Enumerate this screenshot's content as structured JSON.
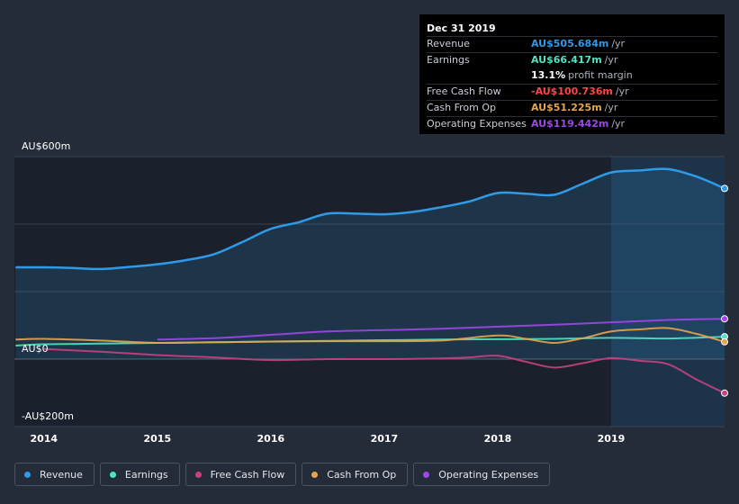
{
  "colors": {
    "revenue": "#2f9ae8",
    "earnings": "#4fe3c1",
    "free_cash_flow": "#c8417e",
    "cash_from_op": "#e8a44a",
    "operating_expenses": "#9d47e8"
  },
  "tooltip": {
    "date": "Dec 31 2019",
    "rows": [
      {
        "label": "Revenue",
        "value": "AU$505.684m",
        "unit": "/yr",
        "color": "#2f9ae8"
      },
      {
        "label": "Earnings",
        "value": "AU$66.417m",
        "unit": "/yr",
        "color": "#4fe3c1"
      },
      {
        "label": "",
        "value": "13.1%",
        "unit": "profit margin",
        "color": "#ffffff"
      },
      {
        "label": "Free Cash Flow",
        "value": "-AU$100.736m",
        "unit": "/yr",
        "color": "#ff4545"
      },
      {
        "label": "Cash From Op",
        "value": "AU$51.225m",
        "unit": "/yr",
        "color": "#e8a44a"
      },
      {
        "label": "Operating Expenses",
        "value": "AU$119.442m",
        "unit": "/yr",
        "color": "#9d47e8"
      }
    ]
  },
  "legend": [
    {
      "label": "Revenue",
      "color": "#2f9ae8"
    },
    {
      "label": "Earnings",
      "color": "#4fe3c1"
    },
    {
      "label": "Free Cash Flow",
      "color": "#c8417e"
    },
    {
      "label": "Cash From Op",
      "color": "#e8a44a"
    },
    {
      "label": "Operating Expenses",
      "color": "#9d47e8"
    }
  ],
  "chart_data": {
    "type": "area",
    "title": "",
    "xlabel": "",
    "ylabel": "",
    "ylim": [
      -200,
      600
    ],
    "xlim": [
      2013.74,
      2020.0
    ],
    "y_tick_labels": [
      {
        "value": 600,
        "label": "AU$600m"
      },
      {
        "value": 0,
        "label": "AU$0"
      },
      {
        "value": -200,
        "label": "-AU$200m"
      }
    ],
    "y_gridlines": [
      600,
      400,
      200,
      0,
      -200
    ],
    "x_ticks": [
      2014,
      2015,
      2016,
      2017,
      2018,
      2019
    ],
    "x_tick_labels": [
      "2014",
      "2015",
      "2016",
      "2017",
      "2018",
      "2019"
    ],
    "forecast_start": 2019.0,
    "series": [
      {
        "name": "Revenue",
        "key": "revenue",
        "x": [
          2013.75,
          2014.0,
          2014.25,
          2014.5,
          2014.75,
          2015.0,
          2015.25,
          2015.5,
          2015.75,
          2016.0,
          2016.25,
          2016.5,
          2016.75,
          2017.0,
          2017.25,
          2017.5,
          2017.75,
          2018.0,
          2018.25,
          2018.5,
          2018.75,
          2019.0,
          2019.25,
          2019.5,
          2019.75,
          2020.0
        ],
        "values": [
          272,
          272,
          270,
          267,
          273,
          281,
          293,
          311,
          347,
          386,
          406,
          431,
          431,
          429,
          436,
          450,
          467,
          492,
          490,
          487,
          520,
          553,
          559,
          563,
          541,
          505.684
        ]
      },
      {
        "name": "Earnings",
        "key": "earnings",
        "x": [
          2013.75,
          2014.0,
          2014.5,
          2015.0,
          2015.5,
          2016.0,
          2016.5,
          2017.0,
          2017.5,
          2018.0,
          2018.5,
          2019.0,
          2019.5,
          2020.0
        ],
        "values": [
          40,
          44,
          46,
          48,
          50,
          52,
          54,
          56,
          58,
          59,
          60,
          63,
          61,
          66.417
        ]
      },
      {
        "name": "Free Cash Flow",
        "key": "free_cash_flow",
        "x": [
          2014.0,
          2014.5,
          2015.0,
          2015.5,
          2016.0,
          2016.5,
          2017.0,
          2017.5,
          2017.75,
          2018.0,
          2018.25,
          2018.5,
          2018.75,
          2019.0,
          2019.25,
          2019.5,
          2019.75,
          2020.0
        ],
        "values": [
          30,
          22,
          12,
          5,
          -3,
          0,
          0,
          2,
          5,
          10,
          -8,
          -25,
          -12,
          3,
          -5,
          -15,
          -60,
          -100.736
        ]
      },
      {
        "name": "Cash From Op",
        "key": "cash_from_op",
        "x": [
          2013.75,
          2014.0,
          2014.5,
          2015.0,
          2015.5,
          2016.0,
          2016.5,
          2017.0,
          2017.5,
          2018.0,
          2018.25,
          2018.5,
          2018.75,
          2019.0,
          2019.25,
          2019.5,
          2019.75,
          2020.0
        ],
        "values": [
          58,
          60,
          55,
          48,
          50,
          52,
          53,
          53,
          55,
          70,
          60,
          48,
          62,
          82,
          88,
          92,
          75,
          51.225
        ]
      },
      {
        "name": "Operating Expenses",
        "key": "operating_expenses",
        "x": [
          2015.0,
          2015.5,
          2016.0,
          2016.5,
          2017.0,
          2017.5,
          2018.0,
          2018.5,
          2019.0,
          2019.5,
          2020.0
        ],
        "values": [
          58,
          62,
          72,
          82,
          86,
          90,
          96,
          102,
          109,
          116,
          119.442
        ]
      }
    ]
  }
}
